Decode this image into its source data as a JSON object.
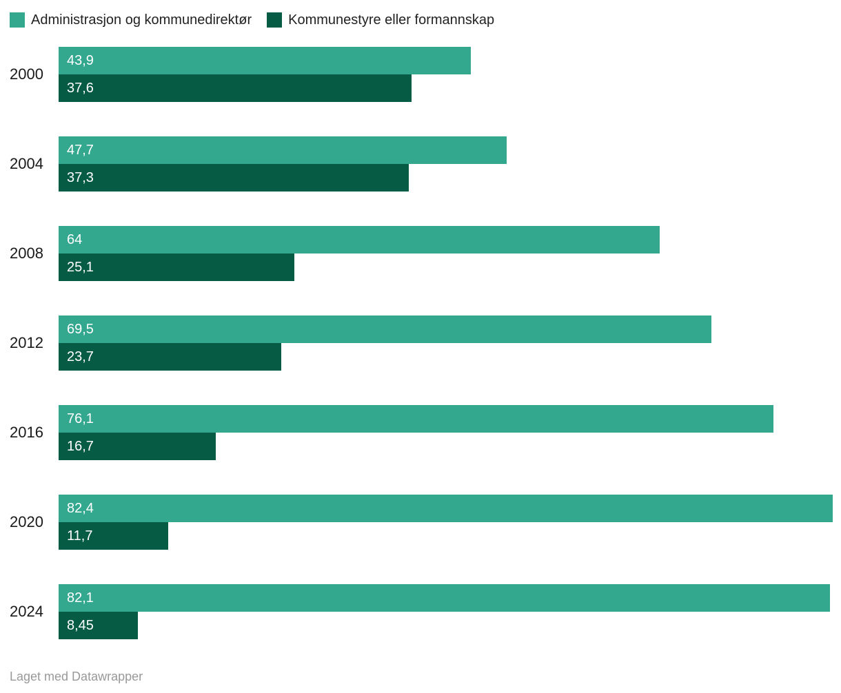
{
  "chart_data": {
    "type": "bar",
    "orientation": "horizontal",
    "grouped": true,
    "grid": false,
    "legend_position": "top",
    "value_label_position": "inside-left",
    "xmax": 82.4,
    "categories": [
      "2000",
      "2004",
      "2008",
      "2012",
      "2016",
      "2020",
      "2024"
    ],
    "series": [
      {
        "name": "Administrasjon og kommunedirektør",
        "color": "#34a78f",
        "values": [
          43.9,
          47.7,
          64,
          69.5,
          76.1,
          82.4,
          82.1
        ],
        "value_labels": [
          "43,9",
          "47,7",
          "64",
          "69,5",
          "76,1",
          "82,4",
          "82,1"
        ]
      },
      {
        "name": "Kommunestyre eller formannskap",
        "color": "#055b43",
        "values": [
          37.6,
          37.3,
          25.1,
          23.7,
          16.7,
          11.7,
          8.45
        ],
        "value_labels": [
          "37,6",
          "37,3",
          "25,1",
          "23,7",
          "16,7",
          "11,7",
          "8,45"
        ]
      }
    ]
  },
  "footer": {
    "attribution": "Laget med Datawrapper"
  }
}
